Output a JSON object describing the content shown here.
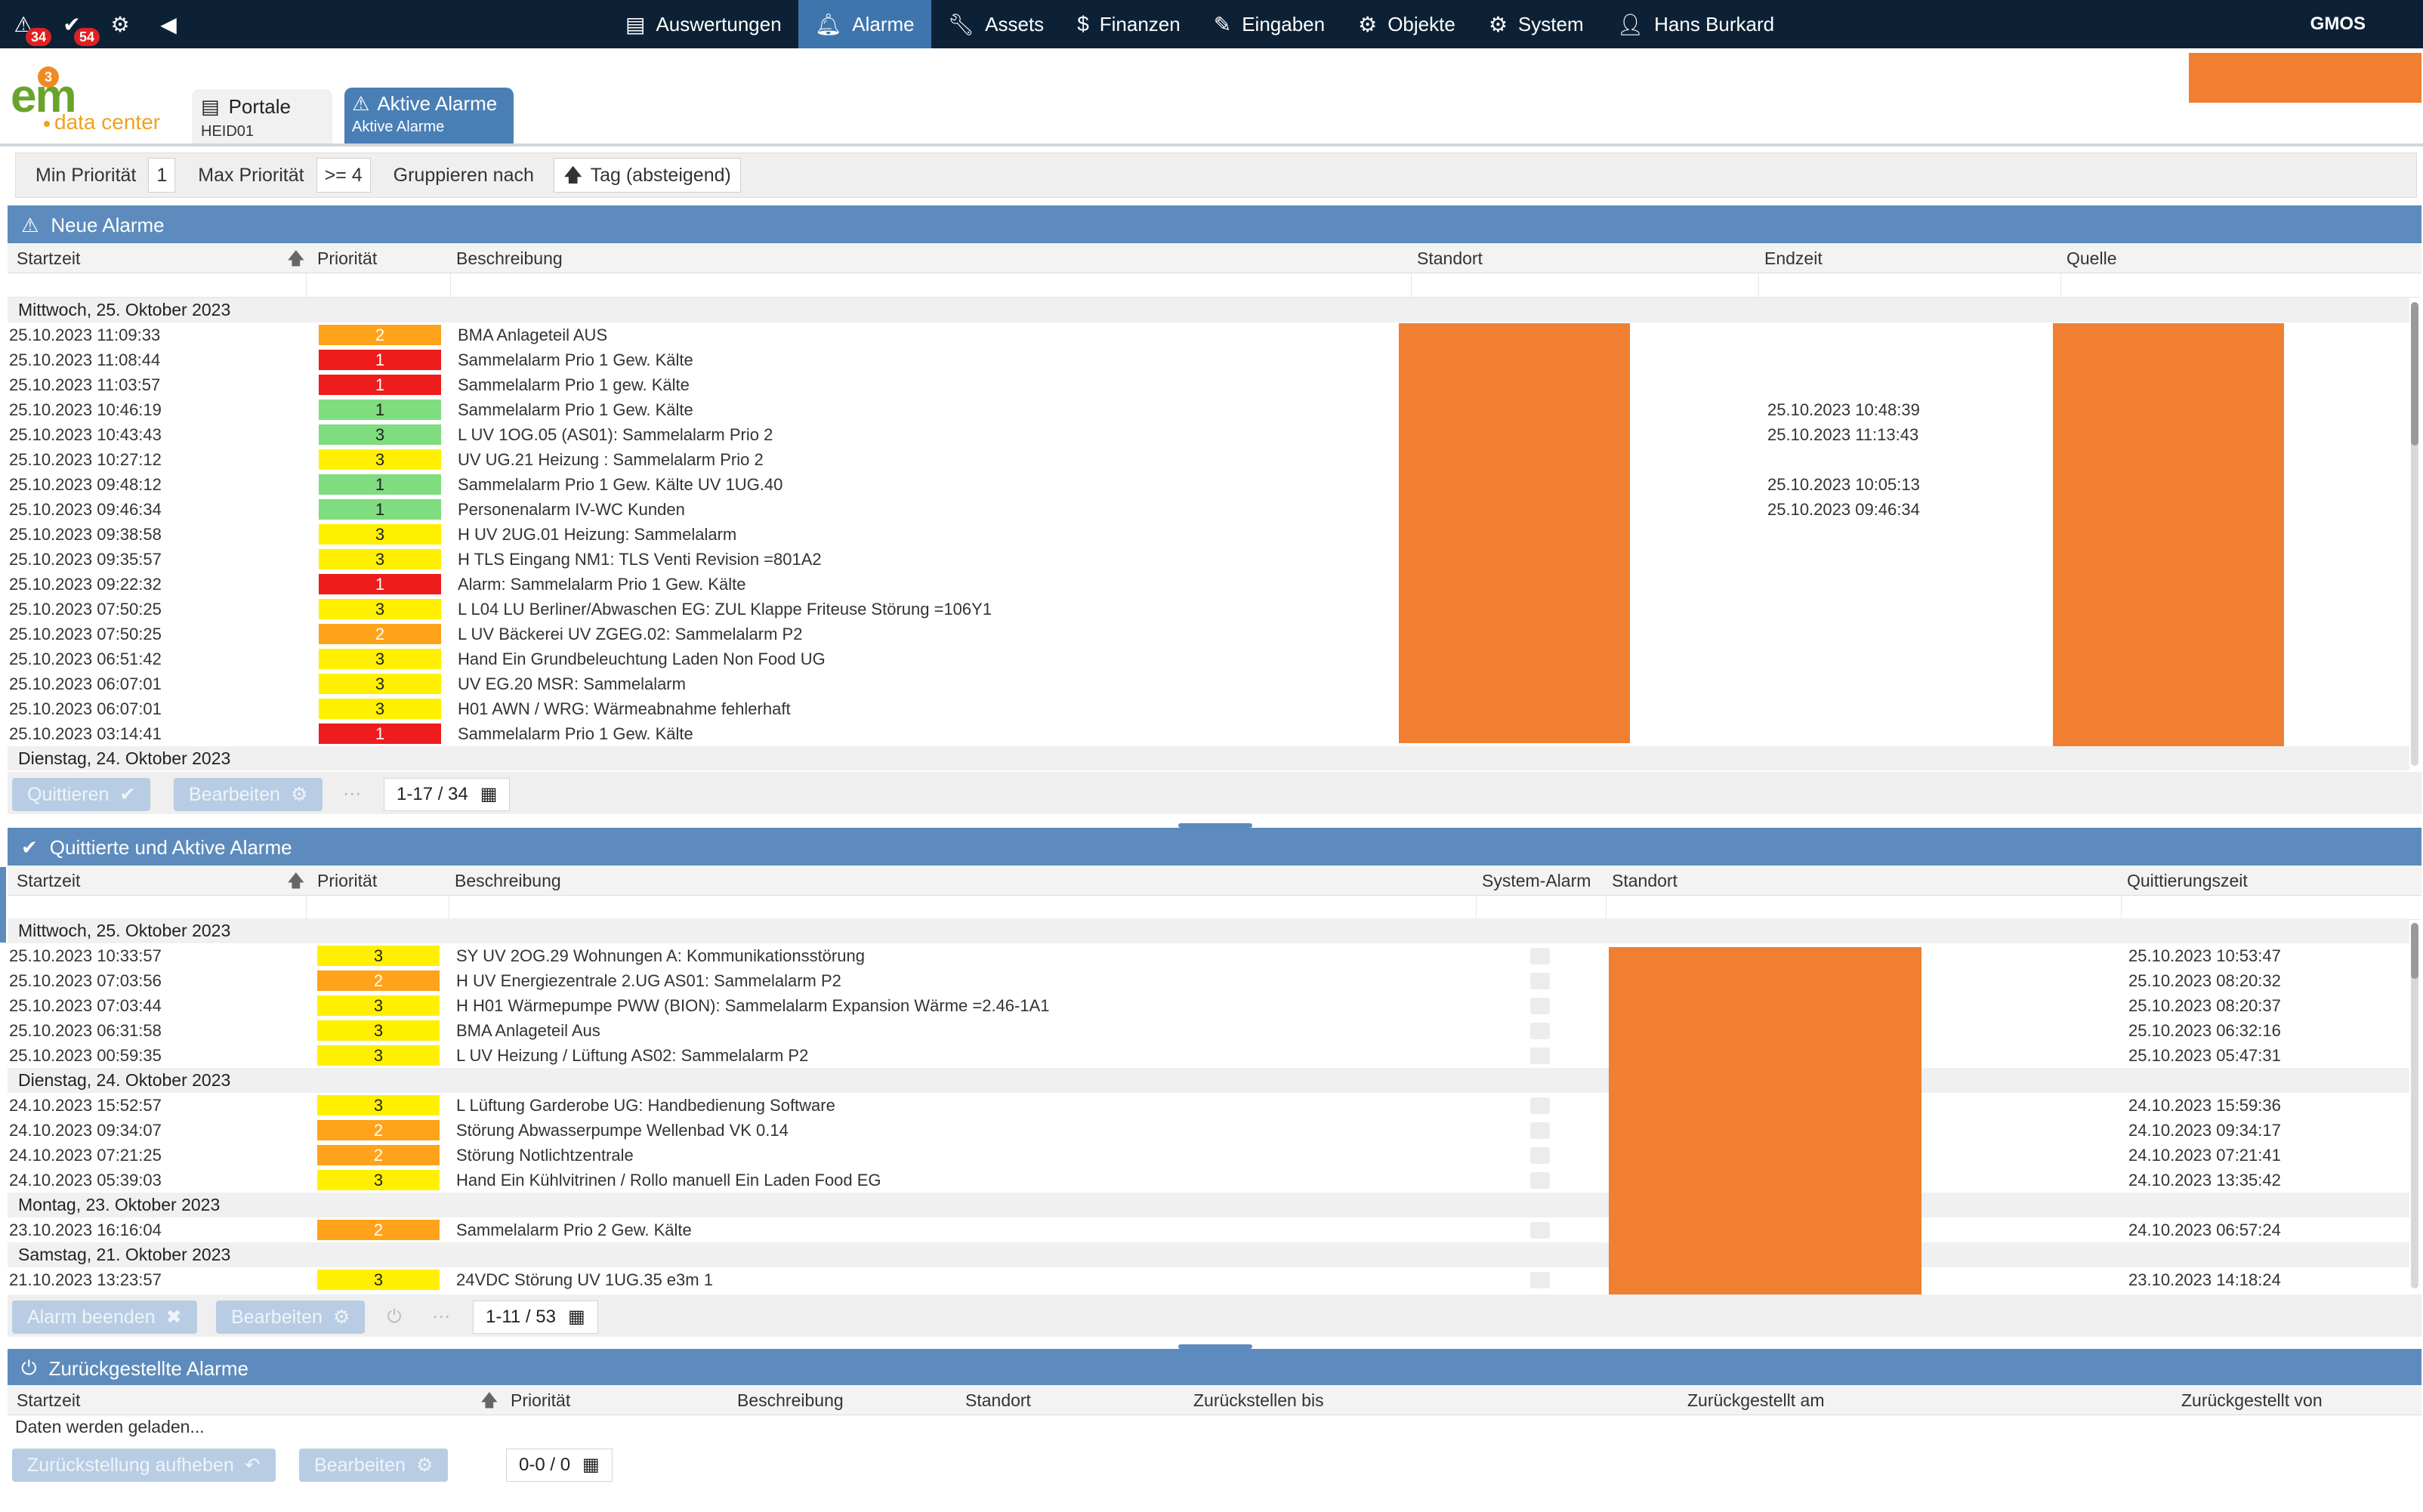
{
  "nav": {
    "badges": {
      "alarms": "34",
      "tasks": "54"
    },
    "menu": [
      {
        "label": "Auswertungen",
        "icon": "report-icon",
        "active": false
      },
      {
        "label": "Alarme",
        "icon": "bell-icon",
        "active": true
      },
      {
        "label": "Assets",
        "icon": "wrench-icon",
        "active": false
      },
      {
        "label": "Finanzen",
        "icon": "dollar-icon",
        "active": false
      },
      {
        "label": "Eingaben",
        "icon": "pencil-icon",
        "active": false
      },
      {
        "label": "Objekte",
        "icon": "gear-icon",
        "active": false
      },
      {
        "label": "System",
        "icon": "gears-icon",
        "active": false
      },
      {
        "label": "Hans Burkard",
        "icon": "user-icon",
        "active": false
      }
    ],
    "right_label": "GMOS"
  },
  "logo": {
    "text": "em",
    "sub": "data center",
    "badge": "3"
  },
  "tabs": {
    "portale": {
      "title": "Portale",
      "sub": "HEID01"
    },
    "aktiv": {
      "title": "Aktive Alarme",
      "sub": "Aktive Alarme"
    }
  },
  "filter": {
    "min_label": "Min Priorität",
    "min_value": "1",
    "max_label": "Max Priorität",
    "max_value": ">= 4",
    "group_label": "Gruppieren nach",
    "group_value": "Tag (absteigend)"
  },
  "neue": {
    "title": "Neue Alarme",
    "columns": {
      "start": "Startzeit",
      "prio": "Priorität",
      "desc": "Beschreibung",
      "loc": "Standort",
      "end": "Endzeit",
      "src": "Quelle"
    },
    "groups": [
      {
        "label": "Mittwoch, 25. Oktober 2023",
        "rows": [
          {
            "start": "25.10.2023 11:09:33",
            "prio": "2",
            "cls": "p2",
            "desc": "BMA Anlageteil AUS",
            "end": ""
          },
          {
            "start": "25.10.2023 11:08:44",
            "prio": "1",
            "cls": "p1",
            "desc": "Sammelalarm Prio 1 Gew. Kälte",
            "end": ""
          },
          {
            "start": "25.10.2023 11:03:57",
            "prio": "1",
            "cls": "p1",
            "desc": "Sammelalarm Prio 1 gew. Kälte",
            "end": ""
          },
          {
            "start": "25.10.2023 10:46:19",
            "prio": "1",
            "cls": "p1g",
            "desc": "Sammelalarm Prio 1 Gew. Kälte",
            "end": "25.10.2023 10:48:39"
          },
          {
            "start": "25.10.2023 10:43:43",
            "prio": "3",
            "cls": "p3g",
            "desc": "L UV 1OG.05 (AS01): Sammelalarm Prio 2",
            "end": "25.10.2023 11:13:43"
          },
          {
            "start": "25.10.2023 10:27:12",
            "prio": "3",
            "cls": "p3",
            "desc": "UV UG.21 Heizung : Sammelalarm Prio 2",
            "end": ""
          },
          {
            "start": "25.10.2023 09:48:12",
            "prio": "1",
            "cls": "p1g",
            "desc": "Sammelalarm Prio 1 Gew. Kälte UV 1UG.40",
            "end": "25.10.2023 10:05:13"
          },
          {
            "start": "25.10.2023 09:46:34",
            "prio": "1",
            "cls": "p1g",
            "desc": "Personenalarm IV-WC Kunden",
            "end": "25.10.2023 09:46:34"
          },
          {
            "start": "25.10.2023 09:38:58",
            "prio": "3",
            "cls": "p3",
            "desc": "H UV 2UG.01 Heizung: Sammelalarm",
            "end": ""
          },
          {
            "start": "25.10.2023 09:35:57",
            "prio": "3",
            "cls": "p3",
            "desc": "H TLS Eingang NM1: TLS Venti Revision =801A2",
            "end": ""
          },
          {
            "start": "25.10.2023 09:22:32",
            "prio": "1",
            "cls": "p1",
            "desc": "Alarm: Sammelalarm Prio 1 Gew. Kälte",
            "end": ""
          },
          {
            "start": "25.10.2023 07:50:25",
            "prio": "3",
            "cls": "p3",
            "desc": "L L04 LU Berliner/Abwaschen EG: ZUL Klappe Friteuse Störung =106Y1",
            "end": ""
          },
          {
            "start": "25.10.2023 07:50:25",
            "prio": "2",
            "cls": "p2",
            "desc": "L UV Bäckerei UV ZGEG.02: Sammelalarm P2",
            "end": ""
          },
          {
            "start": "25.10.2023 06:51:42",
            "prio": "3",
            "cls": "p3",
            "desc": "Hand Ein Grundbeleuchtung Laden Non Food UG",
            "end": ""
          },
          {
            "start": "25.10.2023 06:07:01",
            "prio": "3",
            "cls": "p3",
            "desc": "UV EG.20 MSR: Sammelalarm",
            "end": ""
          },
          {
            "start": "25.10.2023 06:07:01",
            "prio": "3",
            "cls": "p3",
            "desc": "H01 AWN / WRG: Wärmeabnahme fehlerhaft",
            "end": ""
          },
          {
            "start": "25.10.2023 03:14:41",
            "prio": "1",
            "cls": "p1",
            "desc": "Sammelalarm Prio 1 Gew. Kälte",
            "end": ""
          }
        ]
      },
      {
        "label": "Dienstag, 24. Oktober 2023",
        "rows": []
      }
    ],
    "buttons": {
      "ack": "Quittieren",
      "edit": "Bearbeiten"
    },
    "pager": "1-17 / 34"
  },
  "quitt": {
    "title": "Quittierte und Aktive Alarme",
    "columns": {
      "start": "Startzeit",
      "prio": "Priorität",
      "desc": "Beschreibung",
      "sys": "System-Alarm",
      "loc": "Standort",
      "ack": "Quittierungszeit"
    },
    "groups": [
      {
        "label": "Mittwoch, 25. Oktober 2023",
        "rows": [
          {
            "start": "25.10.2023 10:33:57",
            "prio": "3",
            "cls": "p3",
            "desc": "SY UV 2OG.29 Wohnungen A: Kommunikationsstörung",
            "ack": "25.10.2023 10:53:47"
          },
          {
            "start": "25.10.2023 07:03:56",
            "prio": "2",
            "cls": "p2",
            "desc": "H UV Energiezentrale 2.UG AS01: Sammelalarm P2",
            "ack": "25.10.2023 08:20:32"
          },
          {
            "start": "25.10.2023 07:03:44",
            "prio": "3",
            "cls": "p3",
            "desc": "H H01 Wärmepumpe PWW (BION): Sammelalarm Expansion Wärme =2.46-1A1",
            "ack": "25.10.2023 08:20:37"
          },
          {
            "start": "25.10.2023 06:31:58",
            "prio": "3",
            "cls": "p3",
            "desc": "BMA Anlageteil Aus",
            "ack": "25.10.2023 06:32:16"
          },
          {
            "start": "25.10.2023 00:59:35",
            "prio": "3",
            "cls": "p3",
            "desc": "L UV Heizung / Lüftung AS02: Sammelalarm P2",
            "ack": "25.10.2023 05:47:31"
          }
        ]
      },
      {
        "label": "Dienstag, 24. Oktober 2023",
        "rows": [
          {
            "start": "24.10.2023 15:52:57",
            "prio": "3",
            "cls": "p3",
            "desc": "L Lüftung Garderobe UG: Handbedienung Software",
            "ack": "24.10.2023 15:59:36"
          },
          {
            "start": "24.10.2023 09:34:07",
            "prio": "2",
            "cls": "p2",
            "desc": "Störung Abwasserpumpe Wellenbad VK 0.14",
            "ack": "24.10.2023 09:34:17"
          },
          {
            "start": "24.10.2023 07:21:25",
            "prio": "2",
            "cls": "p2",
            "desc": "Störung Notlichtzentrale",
            "ack": "24.10.2023 07:21:41"
          },
          {
            "start": "24.10.2023 05:39:03",
            "prio": "3",
            "cls": "p3",
            "desc": "Hand Ein Kühlvitrinen / Rollo manuell Ein Laden Food EG",
            "ack": "24.10.2023 13:35:42"
          }
        ]
      },
      {
        "label": "Montag, 23. Oktober 2023",
        "rows": [
          {
            "start": "23.10.2023 16:16:04",
            "prio": "2",
            "cls": "p2",
            "desc": "Sammelalarm Prio 2 Gew. Kälte",
            "ack": "24.10.2023 06:57:24"
          }
        ]
      },
      {
        "label": "Samstag, 21. Oktober 2023",
        "rows": [
          {
            "start": "21.10.2023 13:23:57",
            "prio": "3",
            "cls": "p3",
            "desc": "24VDC Störung UV 1UG.35 e3m 1",
            "ack": "23.10.2023 14:18:24"
          }
        ]
      }
    ],
    "buttons": {
      "end": "Alarm beenden",
      "edit": "Bearbeiten"
    },
    "pager": "1-11 / 53"
  },
  "zurueck": {
    "title": "Zurückgestellte Alarme",
    "columns": {
      "start": "Startzeit",
      "prio": "Priorität",
      "desc": "Beschreibung",
      "loc": "Standort",
      "until": "Zurückstellen bis",
      "at": "Zurückgestellt am",
      "by": "Zurückgestellt von"
    },
    "loading": "Daten werden geladen...",
    "buttons": {
      "lift": "Zurückstellung aufheben",
      "edit": "Bearbeiten"
    },
    "pager": "0-0 / 0"
  },
  "colors": {
    "nav": "#0d2136",
    "accent": "#3e75ad",
    "section": "#5d8bbd",
    "redacted": "#f07f32"
  }
}
